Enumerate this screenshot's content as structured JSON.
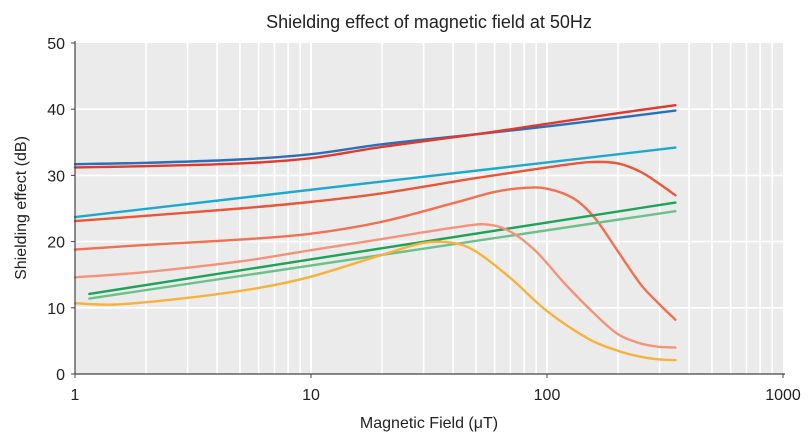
{
  "chart_data": {
    "type": "line",
    "title": "Shielding effect of magnetic field at 50Hz",
    "xlabel": "Magnetic Field  (μT)",
    "ylabel": "Shielding effect (dB)",
    "x_scale": "log",
    "xlim": [
      1,
      1000
    ],
    "ylim": [
      0,
      50
    ],
    "x_ticks": [
      "1",
      "10",
      "100",
      "1000"
    ],
    "y_ticks": [
      "0",
      "10",
      "20",
      "30",
      "40",
      "50"
    ],
    "grid": true,
    "background": "#ebebeb",
    "grid_color": "#ffffff",
    "legend": "none",
    "series": [
      {
        "color": "#2a6fb8",
        "x": [
          1,
          2,
          5,
          10,
          20,
          50,
          100,
          200,
          350
        ],
        "y": [
          31.7,
          31.9,
          32.4,
          33.2,
          34.7,
          36.2,
          37.4,
          38.7,
          39.8
        ]
      },
      {
        "color": "#e03a2e",
        "x": [
          1,
          2,
          5,
          10,
          20,
          50,
          100,
          200,
          350
        ],
        "y": [
          31.2,
          31.4,
          31.8,
          32.6,
          34.3,
          36.2,
          37.8,
          39.4,
          40.6
        ]
      },
      {
        "color": "#1ba9cc",
        "x": [
          1,
          350
        ],
        "y": [
          23.7,
          34.2
        ]
      },
      {
        "color": "#e8573a",
        "x": [
          1,
          2,
          5,
          10,
          20,
          50,
          100,
          150,
          200,
          250,
          300,
          350
        ],
        "y": [
          23.1,
          23.9,
          25.0,
          26.0,
          27.3,
          29.6,
          31.2,
          32.0,
          31.8,
          30.5,
          28.7,
          27.0
        ]
      },
      {
        "color": "#f07051",
        "x": [
          1,
          2,
          5,
          10,
          20,
          40,
          60,
          80,
          100,
          130,
          160,
          200,
          250,
          300,
          350
        ],
        "y": [
          18.8,
          19.5,
          20.3,
          21.2,
          23.0,
          25.8,
          27.5,
          28.1,
          28.0,
          26.5,
          23.5,
          18.5,
          13.5,
          10.5,
          8.2
        ]
      },
      {
        "color": "#1ea35a",
        "x": [
          1.15,
          350
        ],
        "y": [
          12.1,
          25.9
        ]
      },
      {
        "color": "#6cc08a",
        "x": [
          1.15,
          350
        ],
        "y": [
          11.4,
          24.6
        ]
      },
      {
        "color": "#f5937a",
        "x": [
          1,
          2,
          5,
          10,
          20,
          40,
          55,
          70,
          90,
          120,
          160,
          200,
          250,
          300,
          350
        ],
        "y": [
          14.6,
          15.4,
          17.0,
          18.7,
          20.4,
          22.1,
          22.6,
          21.5,
          18.5,
          13.5,
          9.0,
          6.0,
          4.6,
          4.1,
          4.0
        ]
      },
      {
        "color": "#f7b23a",
        "x": [
          1,
          1.5,
          3,
          6,
          10,
          20,
          30,
          40,
          50,
          70,
          100,
          150,
          200,
          250,
          300,
          350
        ],
        "y": [
          10.7,
          10.5,
          11.5,
          13.0,
          14.7,
          18.0,
          19.8,
          19.8,
          18.5,
          14.5,
          9.5,
          5.3,
          3.5,
          2.6,
          2.2,
          2.1
        ]
      }
    ]
  }
}
